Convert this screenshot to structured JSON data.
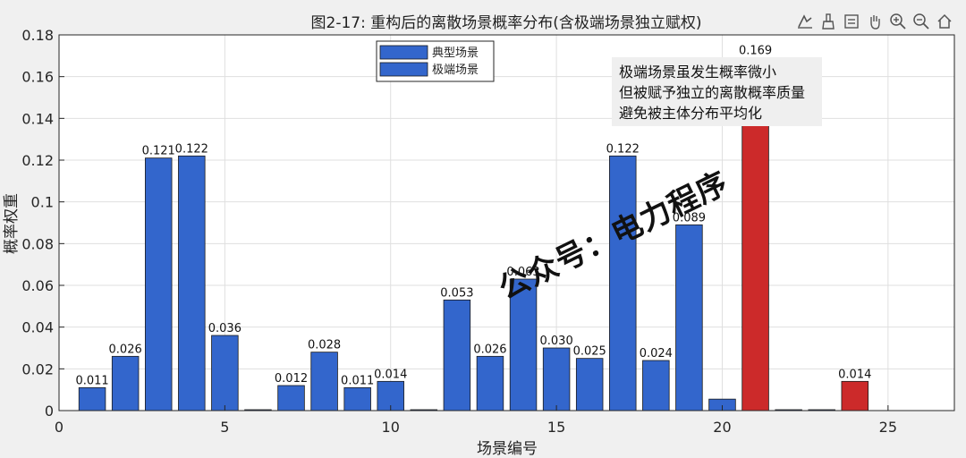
{
  "chart_data": {
    "type": "bar",
    "title": "图2-17: 重构后的离散场景概率分布(含极端场景独立赋权)",
    "xlabel": "场景编号",
    "ylabel": "概率权重",
    "xlim": [
      0,
      27
    ],
    "ylim": [
      0,
      0.18
    ],
    "xticks": [
      "0",
      "5",
      "10",
      "15",
      "20",
      "25"
    ],
    "yticks": [
      "0",
      "0.02",
      "0.04",
      "0.06",
      "0.08",
      "0.1",
      "0.12",
      "0.14",
      "0.16",
      "0.18"
    ],
    "grid": true,
    "legend_position": "top-center",
    "series": [
      {
        "name": "典型场景",
        "color": "#3366cc",
        "x": [
          1,
          2,
          3,
          4,
          5,
          6,
          7,
          8,
          9,
          10,
          11,
          12,
          13,
          14,
          15,
          16,
          17,
          18,
          19,
          20,
          22,
          23
        ],
        "values": [
          0.011,
          0.026,
          0.121,
          0.122,
          0.036,
          0.0004,
          0.012,
          0.028,
          0.011,
          0.014,
          0.0004,
          0.053,
          0.026,
          0.063,
          0.03,
          0.025,
          0.122,
          0.024,
          0.089,
          0.0055,
          0.0004,
          0.0004
        ],
        "labels": [
          "0.011",
          "0.026",
          "0.121",
          "0.122",
          "0.036",
          "",
          "0.012",
          "0.028",
          "0.011",
          "0.014",
          "",
          "0.053",
          "0.026",
          "0.063",
          "0.030",
          "0.025",
          "0.122",
          "0.024",
          "0.089",
          "",
          "",
          ""
        ]
      },
      {
        "name": "极端场景",
        "color": "#cc2a2a",
        "x": [
          21,
          24
        ],
        "values": [
          0.169,
          0.014
        ],
        "labels": [
          "0.169",
          "0.014"
        ]
      }
    ],
    "annotation": {
      "lines": [
        "极端场景虽发生概率微小",
        "但被赋予独立的离散概率质量",
        "避免被主体分布平均化"
      ]
    }
  },
  "watermark": "公众号：电力程序",
  "toolbar": {
    "icons": [
      "data-tips-icon",
      "brush-icon",
      "restore-view-icon",
      "pan-icon",
      "zoom-in-icon",
      "zoom-out-icon",
      "home-icon"
    ]
  }
}
